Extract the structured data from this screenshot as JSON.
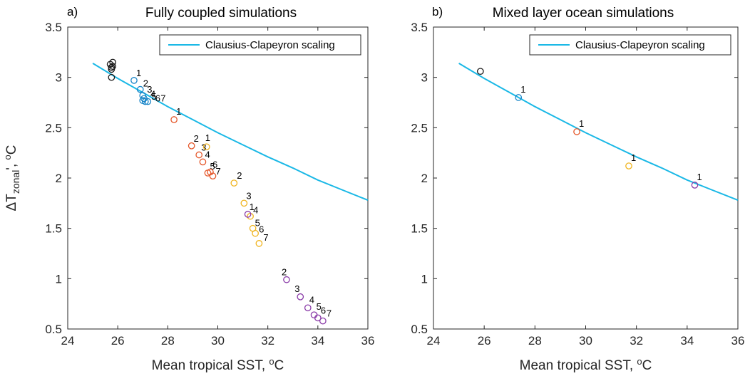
{
  "ylabel": {
    "main": "ΔT",
    "sub": "zonal",
    "tail": "', ",
    "unit_sup": "o",
    "unit": "C"
  },
  "colors": {
    "curve": "#1ab8e6",
    "levels": [
      "#1a1a1a",
      "#1a86c8",
      "#e5572a",
      "#f0b41e",
      "#8a3ba8"
    ]
  },
  "chart_data": [
    {
      "type": "scatter",
      "panel_tag": "a)",
      "title": "Fully coupled simulations",
      "xlabel": "Mean tropical SST, ",
      "xlabel_sup": "o",
      "xlabel_unit": "C",
      "xlim": [
        24,
        36
      ],
      "ylim": [
        0.5,
        3.5
      ],
      "xticks": [
        24,
        26,
        28,
        30,
        32,
        34,
        36
      ],
      "yticks": [
        0.5,
        1,
        1.5,
        2,
        2.5,
        3,
        3.5
      ],
      "grid": false,
      "legend": {
        "position": "top-right",
        "entries": [
          "Clausius-Clapeyron scaling"
        ]
      },
      "curve": {
        "name": "Clausius-Clapeyron scaling",
        "x": [
          25,
          26,
          27,
          28,
          29,
          30,
          31,
          32,
          33,
          34,
          35,
          36
        ],
        "y": [
          3.14,
          2.99,
          2.85,
          2.71,
          2.58,
          2.45,
          2.33,
          2.21,
          2.1,
          1.98,
          1.88,
          1.78
        ]
      },
      "series": [
        {
          "level": 0,
          "points": [
            {
              "x": 25.75,
              "y": 3.1,
              "label": ""
            },
            {
              "x": 25.8,
              "y": 3.15,
              "label": ""
            },
            {
              "x": 25.7,
              "y": 3.13,
              "label": ""
            },
            {
              "x": 25.75,
              "y": 3.08,
              "label": ""
            },
            {
              "x": 25.8,
              "y": 3.11,
              "label": ""
            },
            {
              "x": 25.75,
              "y": 3.0,
              "label": ""
            }
          ]
        },
        {
          "level": 1,
          "points": [
            {
              "x": 26.65,
              "y": 2.97,
              "label": "1"
            },
            {
              "x": 26.9,
              "y": 2.88,
              "label": "2"
            },
            {
              "x": 27.0,
              "y": 2.82,
              "label": "3"
            },
            {
              "x": 27.05,
              "y": 2.79,
              "label": "4"
            },
            {
              "x": 27.0,
              "y": 2.77,
              "label": "5"
            },
            {
              "x": 27.1,
              "y": 2.76,
              "label": "6"
            },
            {
              "x": 27.2,
              "y": 2.76,
              "label": "7"
            }
          ]
        },
        {
          "level": 2,
          "points": [
            {
              "x": 28.25,
              "y": 2.58,
              "label": "1"
            },
            {
              "x": 28.95,
              "y": 2.32,
              "label": "2"
            },
            {
              "x": 29.25,
              "y": 2.23,
              "label": "3"
            },
            {
              "x": 29.4,
              "y": 2.16,
              "label": "4"
            },
            {
              "x": 29.6,
              "y": 2.05,
              "label": "5"
            },
            {
              "x": 29.7,
              "y": 2.06,
              "label": "6"
            },
            {
              "x": 29.8,
              "y": 2.02,
              "label": "7"
            }
          ]
        },
        {
          "level": 3,
          "points": [
            {
              "x": 29.55,
              "y": 2.31,
              "label": "1"
            },
            {
              "x": 30.65,
              "y": 1.95,
              "label": "2"
            },
            {
              "x": 31.05,
              "y": 1.75,
              "label": "3"
            },
            {
              "x": 31.3,
              "y": 1.62,
              "label": "4"
            },
            {
              "x": 31.4,
              "y": 1.5,
              "label": "5"
            },
            {
              "x": 31.5,
              "y": 1.45,
              "label": "6"
            },
            {
              "x": 31.65,
              "y": 1.35,
              "label": "7"
            }
          ]
        },
        {
          "level": 4,
          "points": [
            {
              "x": 31.2,
              "y": 1.64,
              "label": "1"
            },
            {
              "x": 32.75,
              "y": 0.99,
              "label": "2"
            },
            {
              "x": 33.3,
              "y": 0.82,
              "label": "3"
            },
            {
              "x": 33.6,
              "y": 0.71,
              "label": "4"
            },
            {
              "x": 33.85,
              "y": 0.64,
              "label": "5"
            },
            {
              "x": 34.0,
              "y": 0.61,
              "label": "6"
            },
            {
              "x": 34.2,
              "y": 0.58,
              "label": "7"
            }
          ]
        }
      ]
    },
    {
      "type": "scatter",
      "panel_tag": "b)",
      "title": "Mixed layer ocean simulations",
      "xlabel": "Mean tropical SST, ",
      "xlabel_sup": "o",
      "xlabel_unit": "C",
      "xlim": [
        24,
        36
      ],
      "ylim": [
        0.5,
        3.5
      ],
      "xticks": [
        24,
        26,
        28,
        30,
        32,
        34,
        36
      ],
      "yticks": [
        0.5,
        1,
        1.5,
        2,
        2.5,
        3,
        3.5
      ],
      "grid": false,
      "legend": {
        "position": "top-right",
        "entries": [
          "Clausius-Clapeyron scaling"
        ]
      },
      "curve": {
        "name": "Clausius-Clapeyron scaling",
        "x": [
          25,
          26,
          27,
          28,
          29,
          30,
          31,
          32,
          33,
          34,
          35,
          36
        ],
        "y": [
          3.14,
          2.99,
          2.85,
          2.71,
          2.58,
          2.45,
          2.33,
          2.21,
          2.1,
          1.98,
          1.88,
          1.78
        ]
      },
      "series": [
        {
          "level": 0,
          "points": [
            {
              "x": 25.85,
              "y": 3.06,
              "label": ""
            }
          ]
        },
        {
          "level": 1,
          "points": [
            {
              "x": 27.35,
              "y": 2.8,
              "label": "1"
            }
          ]
        },
        {
          "level": 2,
          "points": [
            {
              "x": 29.65,
              "y": 2.46,
              "label": "1"
            }
          ]
        },
        {
          "level": 3,
          "points": [
            {
              "x": 31.7,
              "y": 2.12,
              "label": "1"
            }
          ]
        },
        {
          "level": 4,
          "points": [
            {
              "x": 34.3,
              "y": 1.93,
              "label": "1"
            }
          ]
        }
      ]
    }
  ]
}
